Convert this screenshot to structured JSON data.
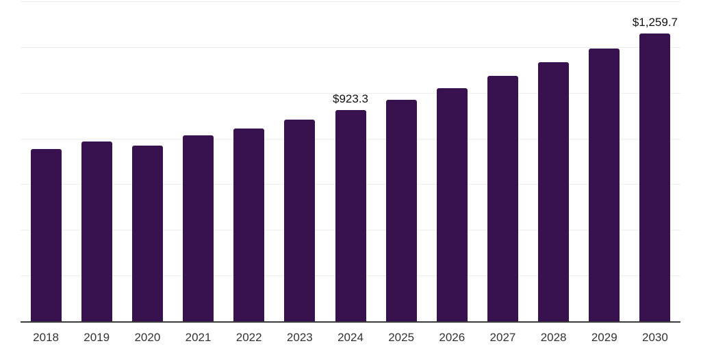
{
  "chart_data": {
    "type": "bar",
    "title": "",
    "xlabel": "",
    "ylabel": "",
    "categories": [
      "2018",
      "2019",
      "2020",
      "2021",
      "2022",
      "2023",
      "2024",
      "2025",
      "2026",
      "2027",
      "2028",
      "2029",
      "2030"
    ],
    "values": [
      755,
      786,
      769,
      814,
      845,
      883,
      923.3,
      970,
      1021,
      1075,
      1135,
      1195,
      1259.7
    ],
    "point_labels": [
      "",
      "",
      "",
      "",
      "",
      "",
      "$923.3",
      "",
      "",
      "",
      "",
      "",
      "$1,259.7"
    ],
    "ylim": [
      0,
      1400
    ],
    "grid_step": 200,
    "grid": "horizontal-only",
    "legend_position": "none",
    "colors": {
      "bar": "#38124E",
      "gridline": "#EEEEEE",
      "axis_line": "#3B3B3B",
      "tick_label": "#333333",
      "value_label": "#111111"
    }
  }
}
